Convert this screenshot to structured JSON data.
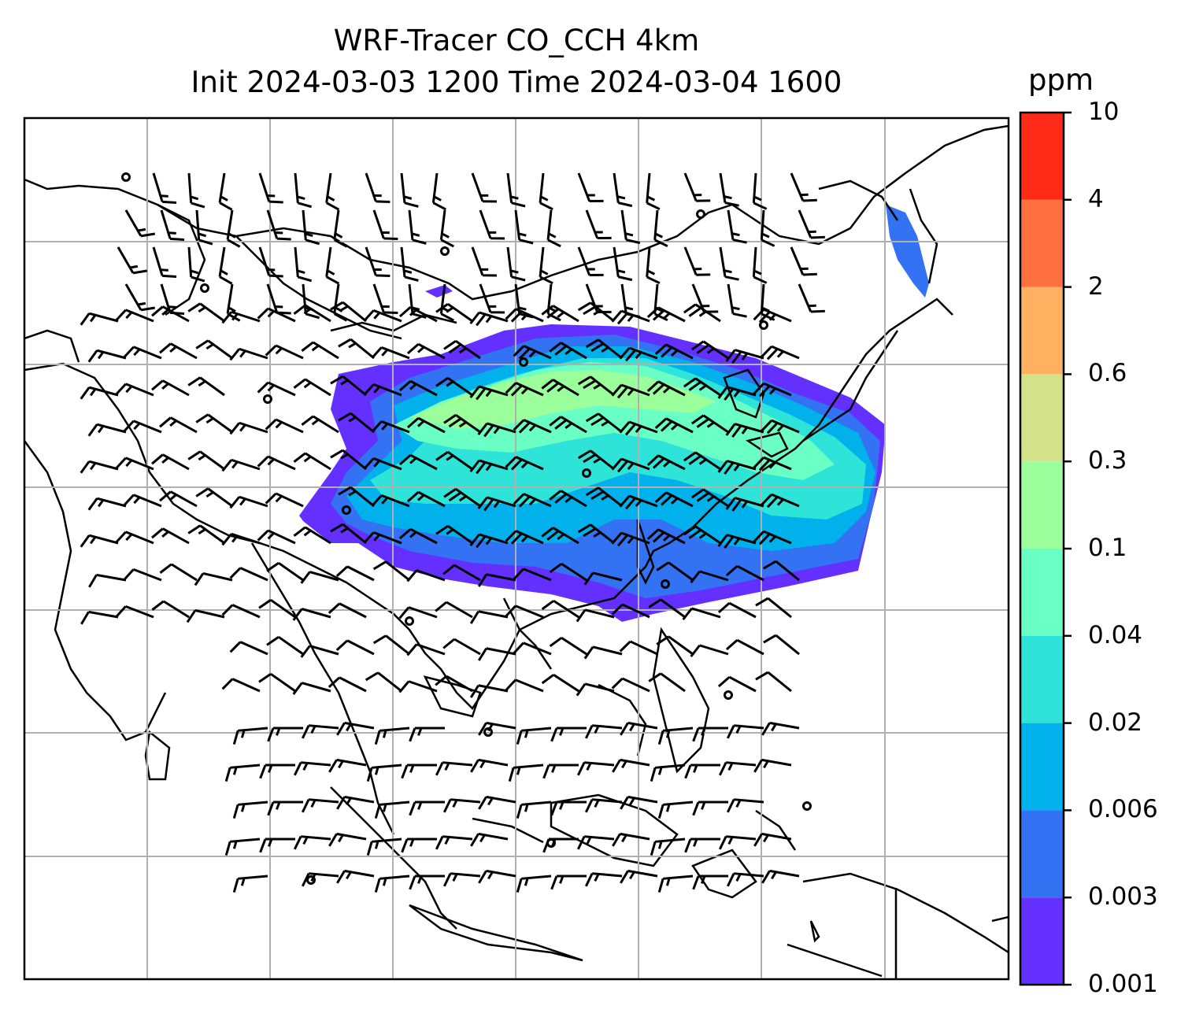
{
  "title": {
    "line1": "WRF-Tracer CO_CCH 4km",
    "line2": "Init 2024-03-03 1200 Time 2024-03-04 1600"
  },
  "colorbar": {
    "unit": "ppm",
    "levels": [
      {
        "label": "0.001",
        "value": 0.001,
        "color": "#6430ff"
      },
      {
        "label": "0.003",
        "value": 0.003,
        "color": "#3372f2"
      },
      {
        "label": "0.006",
        "value": 0.006,
        "color": "#00b1eb"
      },
      {
        "label": "0.02",
        "value": 0.02,
        "color": "#2ee3d8"
      },
      {
        "label": "0.04",
        "value": 0.04,
        "color": "#6affc4"
      },
      {
        "label": "0.1",
        "value": 0.1,
        "color": "#9bff9b"
      },
      {
        "label": "0.3",
        "value": 0.3,
        "color": "#d4e38a"
      },
      {
        "label": "0.6",
        "value": 0.6,
        "color": "#ffb060"
      },
      {
        "label": "2",
        "value": 2,
        "color": "#ff7040"
      },
      {
        "label": "4",
        "value": 4,
        "color": "#ff2a18"
      },
      {
        "label": "10",
        "value": 10,
        "color": null
      }
    ]
  },
  "map": {
    "gridlines": true,
    "grid_color": "#b0b0b0",
    "coastline_color": "#000000",
    "barb_color": "#000000"
  }
}
